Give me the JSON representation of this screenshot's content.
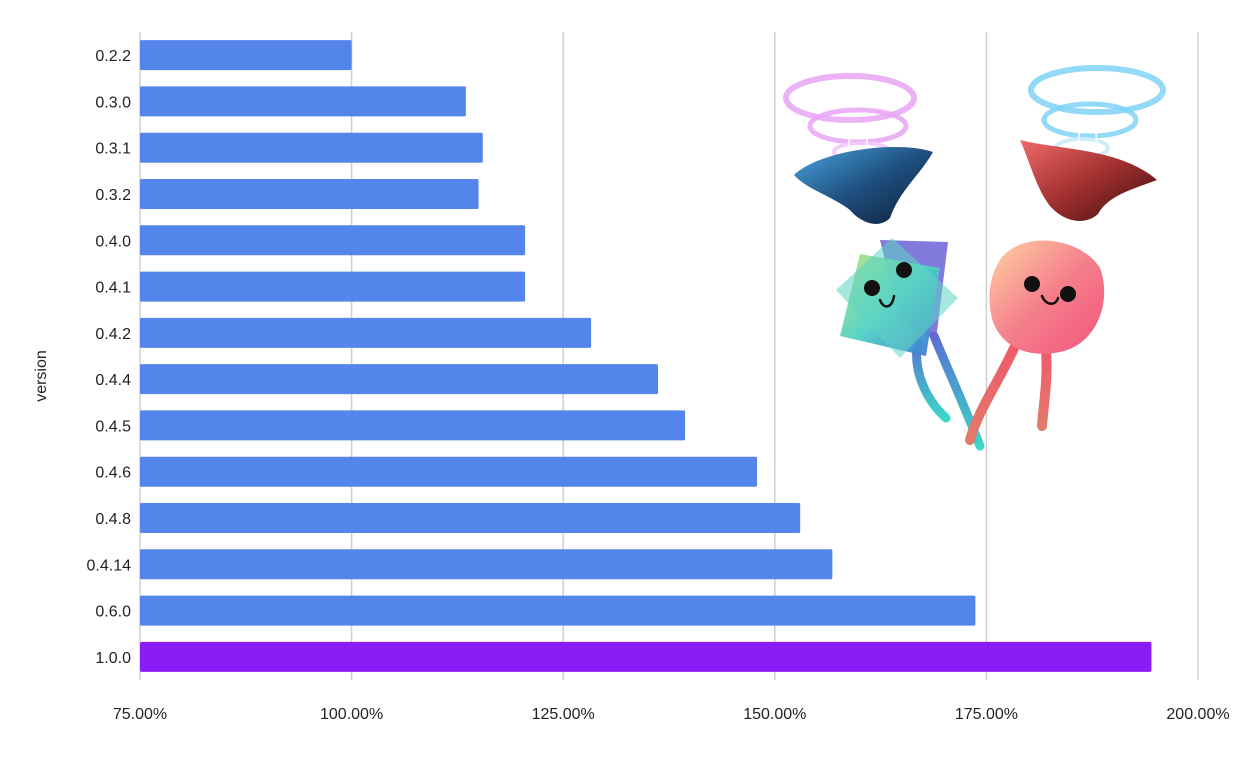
{
  "chart_data": {
    "type": "bar",
    "orientation": "horizontal",
    "ylabel": "version",
    "xlabel": "",
    "xlim": [
      75,
      200
    ],
    "x_ticks": [
      "75.00%",
      "100.00%",
      "125.00%",
      "150.00%",
      "175.00%",
      "200.00%"
    ],
    "x_tick_values": [
      75,
      100,
      125,
      150,
      175,
      200
    ],
    "grid": true,
    "categories": [
      "0.2.2",
      "0.3.0",
      "0.3.1",
      "0.3.2",
      "0.4.0",
      "0.4.1",
      "0.4.2",
      "0.4.4",
      "0.4.5",
      "0.4.6",
      "0.4.8",
      "0.4.14",
      "0.6.0",
      "1.0.0"
    ],
    "values": [
      100.0,
      113.5,
      115.5,
      115.0,
      120.5,
      120.5,
      128.3,
      136.2,
      139.4,
      147.9,
      153.0,
      156.8,
      173.7,
      194.5
    ],
    "colors": [
      "#5385eb",
      "#5385eb",
      "#5385eb",
      "#5385eb",
      "#5385eb",
      "#5385eb",
      "#5385eb",
      "#5385eb",
      "#5385eb",
      "#5385eb",
      "#5385eb",
      "#5385eb",
      "#5385eb",
      "#8c1cf5"
    ]
  },
  "illustration": {
    "icon": "kawaii-mascots-illustration",
    "colors": {
      "teal": "#4fd1c5",
      "pink": "#f07a8a",
      "halo_pink": "#e7a6f5",
      "halo_blue": "#7fd4f7",
      "navy": "#16324f",
      "maroon": "#5a1a1a"
    }
  }
}
